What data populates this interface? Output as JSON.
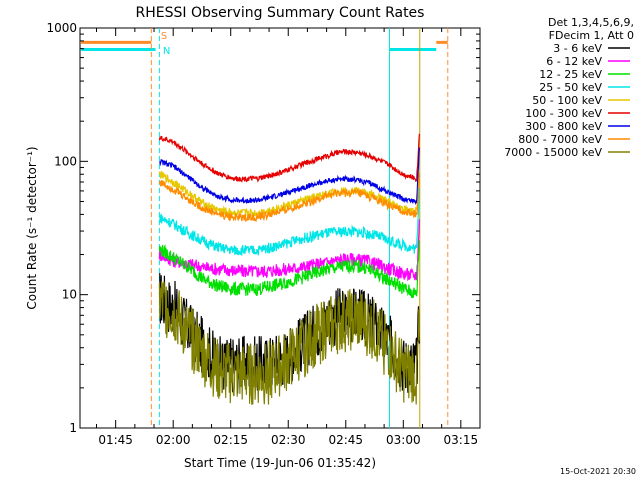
{
  "chart_data": {
    "type": "line",
    "title": "RHESSI Observing Summary Count Rates",
    "xlabel": "Start Time (19-Jun-06 01:35:42)",
    "ylabel": "Count Rate (s⁻¹ detector⁻¹)",
    "yscale": "log",
    "ylim": [
      1,
      1000
    ],
    "xlim": [
      "01:35:42",
      "03:20"
    ],
    "x_tick_labels": [
      "01:45",
      "02:00",
      "02:15",
      "02:30",
      "02:45",
      "03:00",
      "03:15"
    ],
    "x_ticks_minutes": [
      105,
      120,
      135,
      150,
      165,
      180,
      195
    ],
    "y_tick_labels": [
      "1",
      "10",
      "100",
      "1000"
    ],
    "y_tick_values": [
      1,
      10,
      100,
      1000
    ],
    "legend_header": [
      "Det 1,3,4,5,6,9,",
      "FDecim 1, Att 0"
    ],
    "legend_position": "right",
    "date_stamp": "15-Oct-2021 20:30",
    "flag_labels": [
      {
        "text": "S",
        "color": "#ff8c28"
      },
      {
        "text": "N",
        "color": "#00e6e6"
      }
    ],
    "vertical_markers": [
      {
        "t": 114.3,
        "color": "#ff8c28",
        "style": "dashed"
      },
      {
        "t": 116.4,
        "color": "#00e6e6",
        "style": "dashed"
      },
      {
        "t": 176.4,
        "color": "#00e6e6",
        "style": "solid"
      },
      {
        "t": 184.3,
        "color": "#c8a000",
        "style": "solid"
      },
      {
        "t": 191.6,
        "color": "#ff8c28",
        "style": "dashed"
      }
    ],
    "flag_bars": [
      {
        "from": 96,
        "to": 114.3,
        "y": 780,
        "color": "#ff8c28"
      },
      {
        "from": 96,
        "to": 115.4,
        "y": 690,
        "color": "#00e6e6"
      },
      {
        "from": 176.4,
        "to": 188.6,
        "y": 690,
        "color": "#00e6e6"
      },
      {
        "from": 188.6,
        "to": 191.6,
        "y": 780,
        "color": "#ff8c28"
      }
    ],
    "series": [
      {
        "name": "3 - 6 keV",
        "color": "#000000",
        "points": [
          [
            116.4,
            9.5
          ],
          [
            120,
            8
          ],
          [
            124,
            5.5
          ],
          [
            128,
            4
          ],
          [
            132,
            3
          ],
          [
            138,
            3
          ],
          [
            144,
            3
          ],
          [
            150,
            3.5
          ],
          [
            156,
            5
          ],
          [
            160,
            6.5
          ],
          [
            164,
            7
          ],
          [
            168,
            7
          ],
          [
            172,
            6
          ],
          [
            176,
            4.5
          ],
          [
            180,
            3
          ],
          [
            183.5,
            3
          ],
          [
            184.3,
            8
          ]
        ]
      },
      {
        "name": "6 - 12 keV",
        "color": "#ff00ff",
        "points": [
          [
            116.4,
            20
          ],
          [
            120,
            18
          ],
          [
            124,
            17
          ],
          [
            128,
            16
          ],
          [
            132,
            15.5
          ],
          [
            138,
            15
          ],
          [
            144,
            15
          ],
          [
            150,
            15.5
          ],
          [
            156,
            16.5
          ],
          [
            162,
            18
          ],
          [
            166,
            18.5
          ],
          [
            170,
            18
          ],
          [
            174,
            16.5
          ],
          [
            178,
            15
          ],
          [
            182,
            14
          ],
          [
            183.5,
            14
          ],
          [
            184.3,
            40
          ]
        ]
      },
      {
        "name": "12 - 25 keV",
        "color": "#00e000",
        "points": [
          [
            116.4,
            22
          ],
          [
            120,
            19
          ],
          [
            124,
            16
          ],
          [
            128,
            13
          ],
          [
            132,
            11.5
          ],
          [
            136,
            11
          ],
          [
            142,
            11
          ],
          [
            148,
            12
          ],
          [
            154,
            13.5
          ],
          [
            160,
            15.5
          ],
          [
            166,
            16.5
          ],
          [
            170,
            16
          ],
          [
            174,
            14
          ],
          [
            178,
            12
          ],
          [
            182,
            10.5
          ],
          [
            183.5,
            10
          ],
          [
            184.3,
            30
          ]
        ]
      },
      {
        "name": "25 - 50 keV",
        "color": "#00e6e6",
        "points": [
          [
            116.4,
            38
          ],
          [
            120,
            34
          ],
          [
            124,
            29
          ],
          [
            128,
            25
          ],
          [
            132,
            22.5
          ],
          [
            136,
            21.5
          ],
          [
            142,
            21.5
          ],
          [
            148,
            23.5
          ],
          [
            154,
            26.5
          ],
          [
            160,
            29
          ],
          [
            166,
            30
          ],
          [
            170,
            29
          ],
          [
            174,
            27
          ],
          [
            178,
            24.5
          ],
          [
            182,
            22.5
          ],
          [
            183.5,
            22
          ],
          [
            184.3,
            80
          ]
        ]
      },
      {
        "name": "50 - 100 keV",
        "color": "#e6c800",
        "points": [
          [
            116.4,
            80
          ],
          [
            120,
            70
          ],
          [
            124,
            58
          ],
          [
            128,
            48
          ],
          [
            132,
            43
          ],
          [
            136,
            41
          ],
          [
            142,
            41
          ],
          [
            148,
            45
          ],
          [
            154,
            51
          ],
          [
            160,
            57
          ],
          [
            164,
            60
          ],
          [
            168,
            60
          ],
          [
            172,
            56
          ],
          [
            176,
            50
          ],
          [
            180,
            44
          ],
          [
            183.5,
            42
          ],
          [
            184.3,
            90
          ]
        ]
      },
      {
        "name": "100 - 300 keV",
        "color": "#e60000",
        "points": [
          [
            116.4,
            150
          ],
          [
            120,
            140
          ],
          [
            124,
            115
          ],
          [
            128,
            94
          ],
          [
            132,
            80
          ],
          [
            136,
            74
          ],
          [
            142,
            74
          ],
          [
            148,
            82
          ],
          [
            154,
            96
          ],
          [
            160,
            110
          ],
          [
            164,
            118
          ],
          [
            168,
            117
          ],
          [
            172,
            108
          ],
          [
            176,
            95
          ],
          [
            180,
            80
          ],
          [
            183.5,
            74
          ],
          [
            184.3,
            180
          ]
        ]
      },
      {
        "name": "300 - 800 keV",
        "color": "#0000e6",
        "points": [
          [
            116.4,
            100
          ],
          [
            120,
            92
          ],
          [
            124,
            76
          ],
          [
            128,
            62
          ],
          [
            132,
            54
          ],
          [
            136,
            51
          ],
          [
            142,
            51
          ],
          [
            148,
            56
          ],
          [
            154,
            64
          ],
          [
            160,
            71
          ],
          [
            164,
            74
          ],
          [
            168,
            73
          ],
          [
            172,
            67
          ],
          [
            176,
            59
          ],
          [
            180,
            52
          ],
          [
            183.5,
            50
          ],
          [
            184.3,
            150
          ]
        ]
      },
      {
        "name": "800 - 7000 keV",
        "color": "#ff8c00",
        "points": [
          [
            116.4,
            70
          ],
          [
            120,
            62
          ],
          [
            124,
            52
          ],
          [
            128,
            44
          ],
          [
            132,
            40
          ],
          [
            136,
            38
          ],
          [
            142,
            38
          ],
          [
            148,
            42
          ],
          [
            154,
            48
          ],
          [
            160,
            55
          ],
          [
            164,
            58
          ],
          [
            168,
            58
          ],
          [
            172,
            53
          ],
          [
            176,
            47
          ],
          [
            180,
            42
          ],
          [
            183.5,
            40
          ],
          [
            184.3,
            85
          ]
        ]
      },
      {
        "name": "7000 - 15000 keV",
        "color": "#808000",
        "points": [
          [
            116.4,
            9
          ],
          [
            120,
            7.5
          ],
          [
            124,
            5
          ],
          [
            128,
            3.5
          ],
          [
            132,
            2.6
          ],
          [
            138,
            2.5
          ],
          [
            144,
            2.5
          ],
          [
            150,
            3.2
          ],
          [
            156,
            4.6
          ],
          [
            160,
            5.6
          ],
          [
            164,
            6.2
          ],
          [
            168,
            6.5
          ],
          [
            172,
            5.5
          ],
          [
            176,
            4
          ],
          [
            180,
            2.6
          ],
          [
            183.5,
            2.6
          ],
          [
            184.3,
            6
          ]
        ]
      }
    ]
  }
}
